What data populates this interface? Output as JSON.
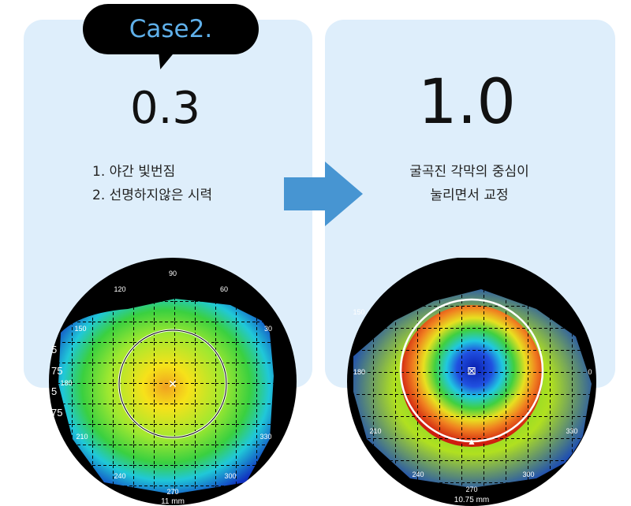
{
  "case_label": "Case2.",
  "before": {
    "acuity": "0.3",
    "symptoms": [
      "1. 야간 빛번짐",
      "2. 선명하지않은 시력"
    ],
    "map": {
      "scale": "11 mm",
      "angles": [
        "90",
        "120",
        "60",
        "150",
        "30",
        "180",
        "210",
        "330",
        "240",
        "300",
        "270"
      ],
      "legend_fragments": [
        "5",
        "75",
        "5",
        "75"
      ]
    }
  },
  "after": {
    "acuity": "1.0",
    "description": [
      "굴곡진 각막의 중심이",
      "눌리면서 교정"
    ],
    "map": {
      "scale": "10.75 mm",
      "angles": [
        "150",
        "180",
        "210",
        "240",
        "270",
        "300",
        "330",
        "0"
      ]
    }
  },
  "colors": {
    "card_bg": "#deeefb",
    "arrow": "#4795d2",
    "bubble_text": "#5fb0ea"
  }
}
